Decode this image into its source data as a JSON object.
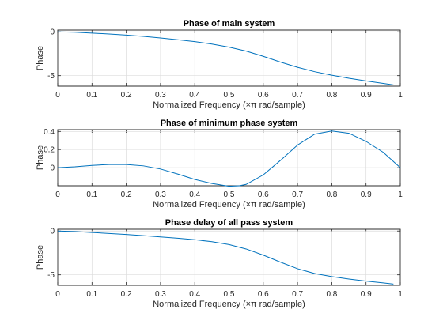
{
  "figure": {
    "background": "#ffffff"
  },
  "chart_data": [
    {
      "type": "line",
      "title": "Phase of main system",
      "xlabel": "Normalized Frequency (×π rad/sample)",
      "ylabel": "Phase",
      "xlim": [
        0,
        1
      ],
      "ylim": [
        -6.2,
        0.2
      ],
      "xticks": [
        0,
        0.1,
        0.2,
        0.3,
        0.4,
        0.5,
        0.6,
        0.7,
        0.8,
        0.9,
        1
      ],
      "xtick_labels": [
        "0",
        "0.1",
        "0.2",
        "0.3",
        "0.4",
        "0.5",
        "0.6",
        "0.7",
        "0.8",
        "0.9",
        "1"
      ],
      "yticks": [
        0,
        -5
      ],
      "ytick_labels": [
        "0",
        "-5"
      ],
      "grid": true,
      "series": [
        {
          "color": "#0072bd",
          "x": [
            0,
            0.05,
            0.1,
            0.15,
            0.2,
            0.25,
            0.3,
            0.35,
            0.4,
            0.45,
            0.5,
            0.55,
            0.6,
            0.65,
            0.7,
            0.75,
            0.8,
            0.85,
            0.9,
            0.95,
            0.98
          ],
          "y": [
            0,
            -0.05,
            -0.15,
            -0.25,
            -0.38,
            -0.52,
            -0.7,
            -0.9,
            -1.12,
            -1.4,
            -1.75,
            -2.2,
            -2.8,
            -3.45,
            -4.05,
            -4.55,
            -4.95,
            -5.3,
            -5.6,
            -5.88,
            -6.05
          ]
        }
      ]
    },
    {
      "type": "line",
      "title": "Phase of minimum phase system",
      "xlabel": "Normalized Frequency (×π rad/sample)",
      "ylabel": "Phase",
      "xlim": [
        0,
        1
      ],
      "ylim": [
        -0.2,
        0.42
      ],
      "xticks": [
        0,
        0.1,
        0.2,
        0.3,
        0.4,
        0.5,
        0.6,
        0.7,
        0.8,
        0.9,
        1
      ],
      "xtick_labels": [
        "0",
        "0.1",
        "0.2",
        "0.3",
        "0.4",
        "0.5",
        "0.6",
        "0.7",
        "0.8",
        "0.9",
        "1"
      ],
      "yticks": [
        0,
        0.2,
        0.4
      ],
      "ytick_labels": [
        "0",
        "0.2",
        "0.4"
      ],
      "grid": true,
      "series": [
        {
          "color": "#0072bd",
          "x": [
            0,
            0.05,
            0.1,
            0.15,
            0.2,
            0.25,
            0.3,
            0.35,
            0.4,
            0.45,
            0.5,
            0.53,
            0.55,
            0.6,
            0.65,
            0.7,
            0.75,
            0.8,
            0.85,
            0.9,
            0.95,
            1
          ],
          "y": [
            0,
            0.01,
            0.025,
            0.035,
            0.035,
            0.02,
            -0.015,
            -0.07,
            -0.13,
            -0.175,
            -0.205,
            -0.2,
            -0.185,
            -0.08,
            0.08,
            0.25,
            0.37,
            0.405,
            0.38,
            0.29,
            0.17,
            0
          ]
        }
      ]
    },
    {
      "type": "line",
      "title": "Phase delay of all pass system",
      "xlabel": "Normalized Frequency (×π rad/sample)",
      "ylabel": "Phase",
      "xlim": [
        0,
        1
      ],
      "ylim": [
        -6.2,
        0.2
      ],
      "xticks": [
        0,
        0.1,
        0.2,
        0.3,
        0.4,
        0.5,
        0.6,
        0.7,
        0.8,
        0.9,
        1
      ],
      "xtick_labels": [
        "0",
        "0.1",
        "0.2",
        "0.3",
        "0.4",
        "0.5",
        "0.6",
        "0.7",
        "0.8",
        "0.9",
        "1"
      ],
      "yticks": [
        0,
        -5
      ],
      "ytick_labels": [
        "0",
        "-5"
      ],
      "grid": true,
      "series": [
        {
          "color": "#0072bd",
          "x": [
            0,
            0.05,
            0.1,
            0.15,
            0.2,
            0.25,
            0.3,
            0.35,
            0.4,
            0.45,
            0.5,
            0.55,
            0.6,
            0.65,
            0.7,
            0.75,
            0.8,
            0.85,
            0.9,
            0.95,
            0.98
          ],
          "y": [
            0,
            -0.06,
            -0.17,
            -0.28,
            -0.4,
            -0.53,
            -0.68,
            -0.83,
            -1.0,
            -1.22,
            -1.55,
            -2.05,
            -2.75,
            -3.55,
            -4.3,
            -4.85,
            -5.2,
            -5.48,
            -5.72,
            -5.92,
            -6.05
          ]
        }
      ]
    }
  ]
}
